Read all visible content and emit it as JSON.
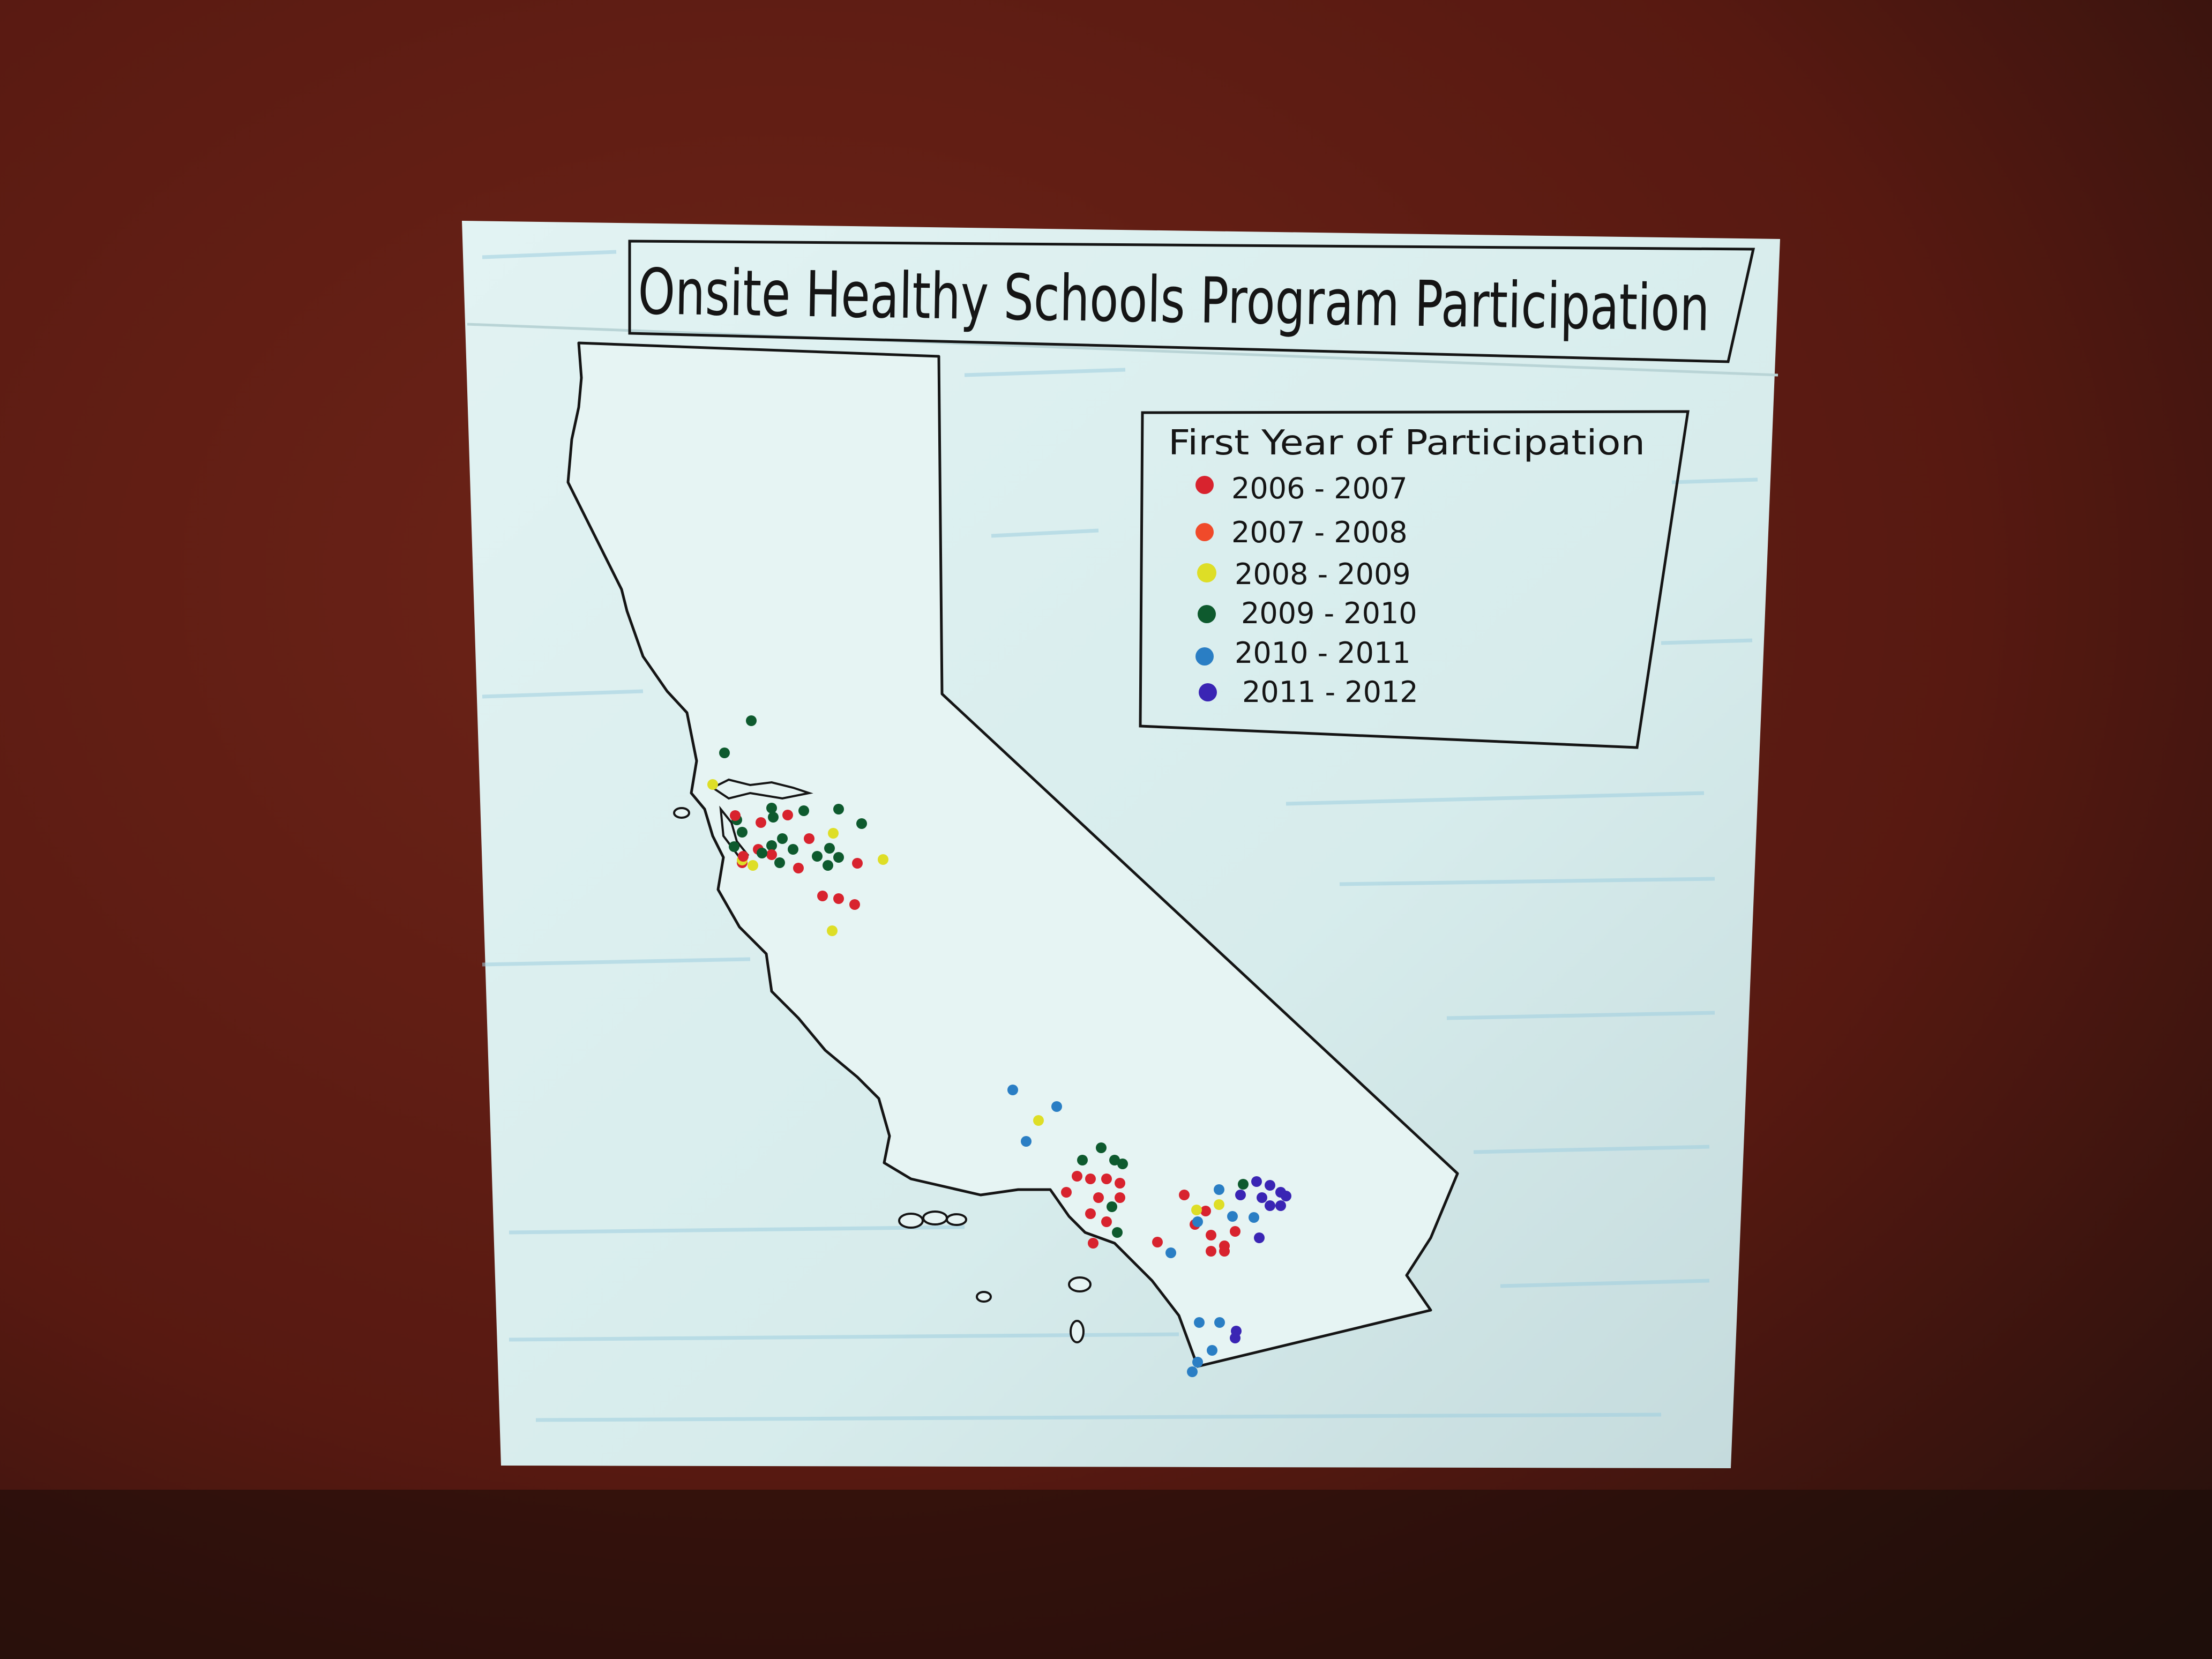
{
  "title": "Onsite Healthy Schools Program Participation",
  "legend": {
    "title": "First Year of Participation",
    "items": [
      {
        "label": "2006 - 2007",
        "color": "#d8232e"
      },
      {
        "label": "2007 - 2008",
        "color": "#f04a2a"
      },
      {
        "label": "2008 - 2009",
        "color": "#dede26"
      },
      {
        "label": "2009 - 2010",
        "color": "#0e5a2e"
      },
      {
        "label": "2010 - 2011",
        "color": "#2a7ec4"
      },
      {
        "label": "2011 - 2012",
        "color": "#3a25b4"
      }
    ]
  },
  "colors": {
    "background": "#5a1a12",
    "paper": "#dcefee",
    "map_fill": "#e6f4f3",
    "ink": "#151515"
  }
}
